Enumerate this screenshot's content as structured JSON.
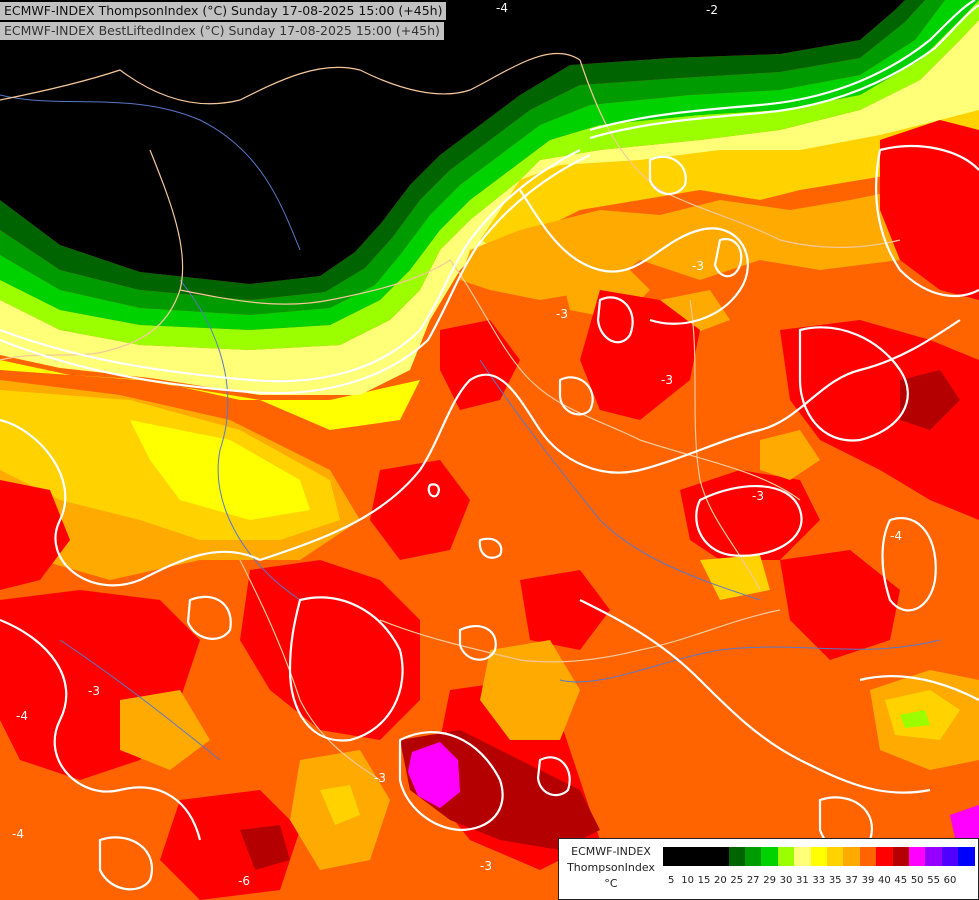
{
  "header": {
    "line1": "ECMWF-INDEX ThompsonIndex (°C) Sunday 17-08-2025 15:00 (+45h)",
    "line2": "ECMWF-INDEX BestLiftedIndex (°C) Sunday 17-08-2025 15:00 (+45h)"
  },
  "legend": {
    "title": "ECMWF-INDEX",
    "variable": "ThompsonIndex",
    "unit": "°C",
    "scale": [
      {
        "label": "5",
        "color": "#000000"
      },
      {
        "label": "10",
        "color": "#000000"
      },
      {
        "label": "15",
        "color": "#000000"
      },
      {
        "label": "20",
        "color": "#000000"
      },
      {
        "label": "25",
        "color": "#006400"
      },
      {
        "label": "27",
        "color": "#009b00"
      },
      {
        "label": "29",
        "color": "#00d200"
      },
      {
        "label": "30",
        "color": "#9bff00"
      },
      {
        "label": "31",
        "color": "#ffff78"
      },
      {
        "label": "33",
        "color": "#ffff00"
      },
      {
        "label": "35",
        "color": "#ffd200"
      },
      {
        "label": "37",
        "color": "#ffaa00"
      },
      {
        "label": "39",
        "color": "#ff6400"
      },
      {
        "label": "40",
        "color": "#ff0000"
      },
      {
        "label": "45",
        "color": "#b40000"
      },
      {
        "label": "50",
        "color": "#ff00ff"
      },
      {
        "label": "55",
        "color": "#9600ff"
      },
      {
        "label": "60",
        "color": "#5000ff"
      },
      {
        "label": "",
        "color": "#0000ff"
      }
    ]
  },
  "map": {
    "colors": {
      "black": "#000000",
      "dark_green": "#006400",
      "green": "#009b00",
      "bright_green": "#00d200",
      "lime": "#9bff00",
      "pale_yellow": "#ffff78",
      "yellow": "#ffff00",
      "gold": "#ffd200",
      "orange": "#ffaa00",
      "dark_orange": "#ff6400",
      "red": "#ff0000",
      "dark_red": "#b40000",
      "magenta": "#ff00ff",
      "contour": "#ffffff",
      "border": "#f5c89a",
      "river": "#5a78c8"
    },
    "contour_labels": [
      "-4",
      "-2",
      "-3",
      "-3",
      "-3",
      "-3",
      "-3",
      "-4",
      "-4",
      "-3",
      "-6",
      "-3",
      "-4",
      "-6"
    ]
  }
}
